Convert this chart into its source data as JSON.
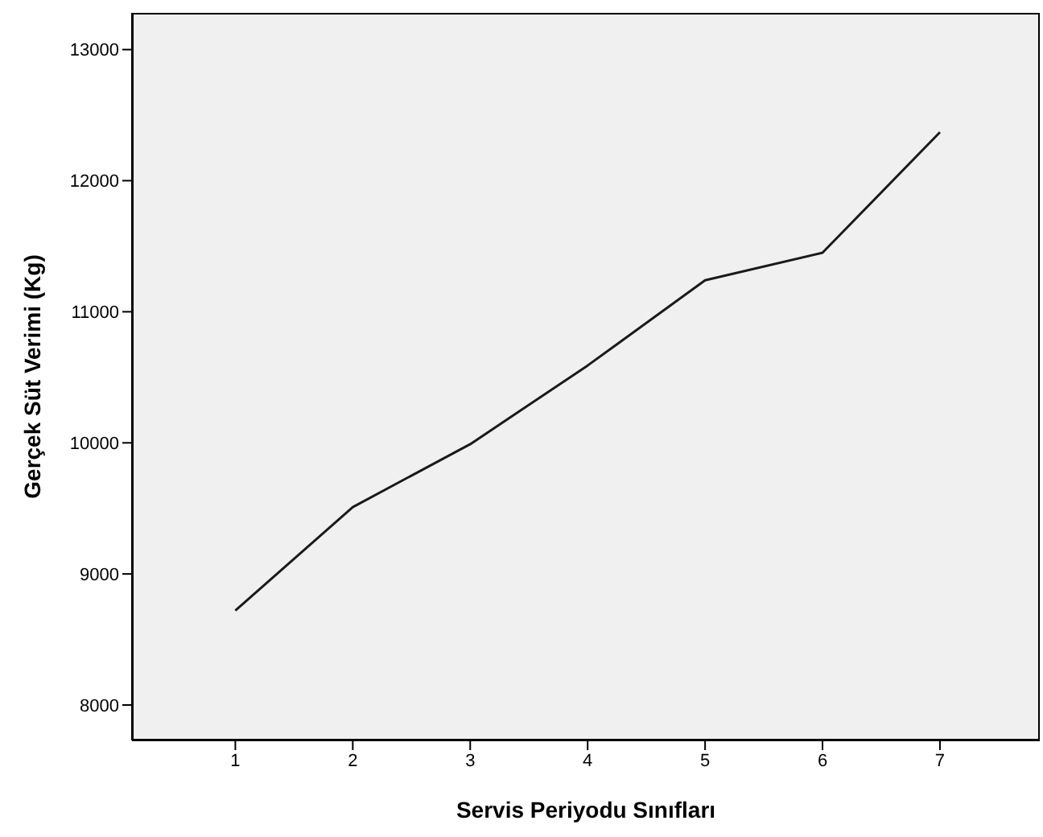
{
  "chart_data": {
    "type": "line",
    "xlabel": "Servis Periyodu Sınıfları",
    "ylabel": "Gerçek Süt Verimi (Kg)",
    "x": [
      1,
      2,
      3,
      4,
      5,
      6,
      7
    ],
    "series": [
      {
        "color": "#1a1a1a",
        "values": [
          8720,
          9510,
          9990,
          10590,
          11240,
          11450,
          12370
        ]
      }
    ],
    "xlim": [
      0.12,
      7.85
    ],
    "xticks": [
      1,
      2,
      3,
      4,
      5,
      6,
      7
    ],
    "ylim": [
      7730,
      13280
    ],
    "yticks": [
      8000,
      9000,
      10000,
      11000,
      12000,
      13000
    ],
    "grid": false,
    "marker": "none",
    "line_style": "solid"
  }
}
